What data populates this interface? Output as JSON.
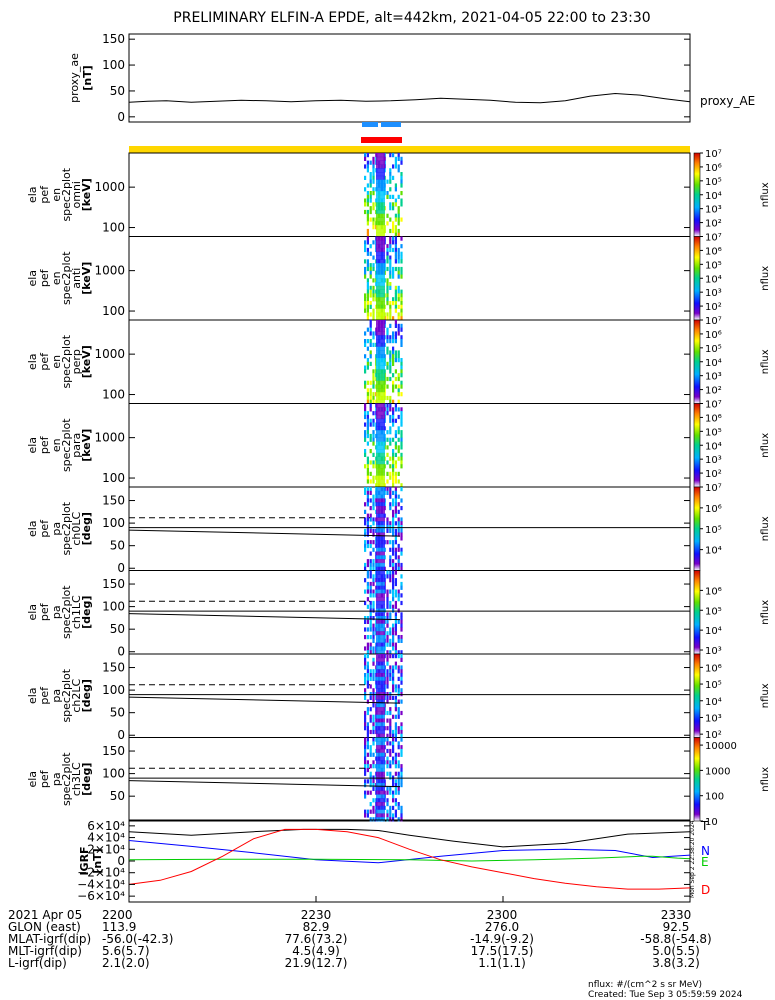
{
  "title": "PRELIMINARY ELFIN-A EPDE, alt=442km, 2021-04-05 22:00 to 23:30",
  "chart_data": [
    {
      "type": "line",
      "panel": "proxy_ae",
      "ylabel": [
        "proxy_ae",
        "[nT]"
      ],
      "yticks": [
        "150",
        "100",
        "50",
        "0"
      ],
      "ytick_values": [
        150,
        100,
        50,
        0
      ],
      "ylim": [
        -10,
        160
      ],
      "series": [
        {
          "name": "proxy_AE",
          "x": [
            0,
            3,
            6,
            10,
            14,
            18,
            22,
            26,
            30,
            34,
            38,
            42,
            46,
            50,
            54,
            58,
            62,
            66,
            70,
            74,
            78,
            82,
            86,
            90
          ],
          "y": [
            28,
            30,
            31,
            28,
            30,
            32,
            31,
            29,
            31,
            32,
            30,
            31,
            33,
            36,
            34,
            32,
            28,
            27,
            31,
            40,
            45,
            42,
            35,
            29
          ]
        }
      ]
    },
    {
      "type": "heatmap",
      "panels": [
        {
          "label": [
            "ela",
            "pef",
            "en",
            "spec2plot",
            "omni",
            "[keV]"
          ],
          "yticks": [
            "1000",
            "100"
          ],
          "ytick_values": [
            1000,
            100
          ],
          "ylim": [
            60,
            7000
          ],
          "colorbar": {
            "min": 1,
            "max": 7,
            "ticks": [
              "10⁷",
              "10⁶",
              "10⁵",
              "10⁴",
              "10³",
              "10²"
            ],
            "tick_exps": [
              7,
              6,
              5,
              4,
              3,
              2
            ],
            "label": "nflux"
          }
        },
        {
          "label": [
            "ela",
            "pef",
            "en",
            "spec2plot",
            "anti",
            "[keV]"
          ],
          "yticks": [
            "1000",
            "100"
          ],
          "ytick_values": [
            1000,
            100
          ],
          "ylim": [
            60,
            7000
          ],
          "colorbar": {
            "min": 1,
            "max": 7,
            "ticks": [
              "10⁷",
              "10⁶",
              "10⁵",
              "10⁴",
              "10³",
              "10²"
            ],
            "tick_exps": [
              7,
              6,
              5,
              4,
              3,
              2
            ],
            "label": "nflux"
          }
        },
        {
          "label": [
            "ela",
            "pef",
            "en",
            "spec2plot",
            "perp",
            "[keV]"
          ],
          "yticks": [
            "1000",
            "100"
          ],
          "ytick_values": [
            1000,
            100
          ],
          "ylim": [
            60,
            7000
          ],
          "colorbar": {
            "min": 1,
            "max": 7,
            "ticks": [
              "10⁷",
              "10⁶",
              "10⁵",
              "10⁴",
              "10³",
              "10²"
            ],
            "tick_exps": [
              7,
              6,
              5,
              4,
              3,
              2
            ],
            "label": "nflux"
          }
        },
        {
          "label": [
            "ela",
            "pef",
            "en",
            "spec2plot",
            "para",
            "[keV]"
          ],
          "yticks": [
            "1000",
            "100"
          ],
          "ytick_values": [
            1000,
            100
          ],
          "ylim": [
            60,
            7000
          ],
          "colorbar": {
            "min": 1,
            "max": 7,
            "ticks": [
              "10⁷",
              "10⁶",
              "10⁵",
              "10⁴",
              "10³",
              "10²"
            ],
            "tick_exps": [
              7,
              6,
              5,
              4,
              3,
              2
            ],
            "label": "nflux"
          }
        },
        {
          "label": [
            "ela",
            "pef",
            "pa",
            "spec2plot",
            "ch0LC",
            "[deg]"
          ],
          "yticks": [
            "150",
            "100",
            "50",
            "0"
          ],
          "ytick_values": [
            150,
            100,
            50,
            0
          ],
          "ylim": [
            -5,
            180
          ],
          "colorbar": {
            "min": 3,
            "max": 7,
            "ticks": [
              "10⁷",
              "10⁶",
              "10⁵",
              "10⁴"
            ],
            "tick_exps": [
              7,
              6,
              5,
              4
            ],
            "label": "nflux"
          }
        },
        {
          "label": [
            "ela",
            "pef",
            "pa",
            "spec2plot",
            "ch1LC",
            "[deg]"
          ],
          "yticks": [
            "150",
            "100",
            "50",
            "0"
          ],
          "ytick_values": [
            150,
            100,
            50,
            0
          ],
          "ylim": [
            -5,
            180
          ],
          "colorbar": {
            "min": 2.8,
            "max": 7,
            "ticks": [
              "10⁶",
              "10⁵",
              "10⁴",
              "10³"
            ],
            "tick_exps": [
              6,
              5,
              4,
              3
            ],
            "label": "nflux"
          }
        },
        {
          "label": [
            "ela",
            "pef",
            "pa",
            "spec2plot",
            "ch2LC",
            "[deg]"
          ],
          "yticks": [
            "150",
            "100",
            "50",
            "0"
          ],
          "ytick_values": [
            150,
            100,
            50,
            0
          ],
          "ylim": [
            -5,
            180
          ],
          "colorbar": {
            "min": 1.8,
            "max": 6.8,
            "ticks": [
              "10⁶",
              "10⁵",
              "10⁴",
              "10³",
              "10²"
            ],
            "tick_exps": [
              6,
              5,
              4,
              3,
              2
            ],
            "label": "nflux"
          }
        },
        {
          "label": [
            "ela",
            "pef",
            "pa",
            "spec2plot",
            "ch3LC",
            "[deg]"
          ],
          "yticks": [
            "150",
            "100",
            "50"
          ],
          "ytick_values": [
            150,
            100,
            50
          ],
          "ylim": [
            -5,
            180
          ],
          "colorbar": {
            "min": 1,
            "max": 4.3,
            "ticks": [
              "10000",
              "1000",
              "100",
              "10"
            ],
            "tick_exps": [
              4,
              3,
              2,
              1
            ],
            "label": "nflux"
          }
        }
      ]
    },
    {
      "type": "line",
      "panel": "IGRF",
      "ylabel": [
        "IGRF",
        "[nT]"
      ],
      "yticks": [
        "6×10⁴",
        "4×10⁴",
        "2×10⁴",
        "0",
        "−2×10⁴",
        "−4×10⁴",
        "−6×10⁴"
      ],
      "ytick_values": [
        60000,
        40000,
        20000,
        0,
        -20000,
        -40000,
        -60000
      ],
      "ylim": [
        -70000,
        70000
      ],
      "series": [
        {
          "name": "T",
          "color": "#000000",
          "x": [
            0,
            10,
            20,
            28,
            35,
            40,
            45,
            52,
            60,
            70,
            80,
            90
          ],
          "y": [
            50000,
            44000,
            50000,
            54000,
            54000,
            52000,
            44000,
            34000,
            24000,
            30000,
            46000,
            50000
          ]
        },
        {
          "name": "N",
          "color": "#0000ff",
          "x": [
            0,
            10,
            20,
            30,
            40,
            50,
            60,
            70,
            78,
            84,
            90
          ],
          "y": [
            35000,
            25000,
            14000,
            2000,
            -3000,
            8000,
            18000,
            20000,
            18000,
            6000,
            10000
          ]
        },
        {
          "name": "E",
          "color": "#00cc00",
          "x": [
            0,
            15,
            30,
            45,
            55,
            65,
            75,
            82,
            84,
            88,
            90
          ],
          "y": [
            2000,
            3000,
            3000,
            2000,
            0,
            2000,
            5000,
            8000,
            8000,
            5000,
            4000
          ]
        },
        {
          "name": "D",
          "color": "#ff0000",
          "x": [
            0,
            5,
            10,
            15,
            20,
            25,
            30,
            35,
            40,
            45,
            50,
            55,
            60,
            65,
            70,
            75,
            80,
            85,
            90
          ],
          "y": [
            -40000,
            -33000,
            -18000,
            8000,
            38000,
            54000,
            54000,
            50000,
            40000,
            20000,
            2000,
            -10000,
            -20000,
            -30000,
            -38000,
            -44000,
            -48000,
            -48000,
            -46000
          ]
        }
      ]
    }
  ],
  "bars": {
    "blue_label": "",
    "red_label": ""
  },
  "xaxis": {
    "ticks": [
      "2200",
      "2230",
      "2300",
      "2330"
    ],
    "tick_minutes": [
      0,
      30,
      60,
      90
    ],
    "rows": [
      {
        "label": "2021 Apr 05",
        "values": [
          "2200",
          "2230",
          "2300",
          "2330"
        ]
      },
      {
        "label": "GLON (east)",
        "values": [
          "113.9",
          "82.9",
          "276.0",
          "92.5"
        ]
      },
      {
        "label": "MLAT-igrf(dip)",
        "values": [
          "-56.0(-42.3)",
          "77.6(73.2)",
          "-14.9(-9.2)",
          "-58.8(-54.8)"
        ]
      },
      {
        "label": "MLT-igrf(dip)",
        "values": [
          "5.6(5.7)",
          "4.5(4.9)",
          "17.5(17.5)",
          "5.0(5.5)"
        ]
      },
      {
        "label": "L-igrf(dip)",
        "values": [
          "2.1(2.0)",
          "21.9(12.7)",
          "1.1(1.1)",
          "3.8(3.2)"
        ]
      }
    ]
  },
  "footer": {
    "units": "nflux: #/(cm^2 s sr MeV)",
    "created": "Created: Tue Sep  3 05:59:59 2024",
    "side_stamp": "Mon Sep  2 22:38:20 2024"
  },
  "colors": {
    "ae_line": "#000000",
    "bar_blue": "#1e90ff",
    "bar_red": "#ff0000",
    "bar_yellow": "#ffd700"
  }
}
